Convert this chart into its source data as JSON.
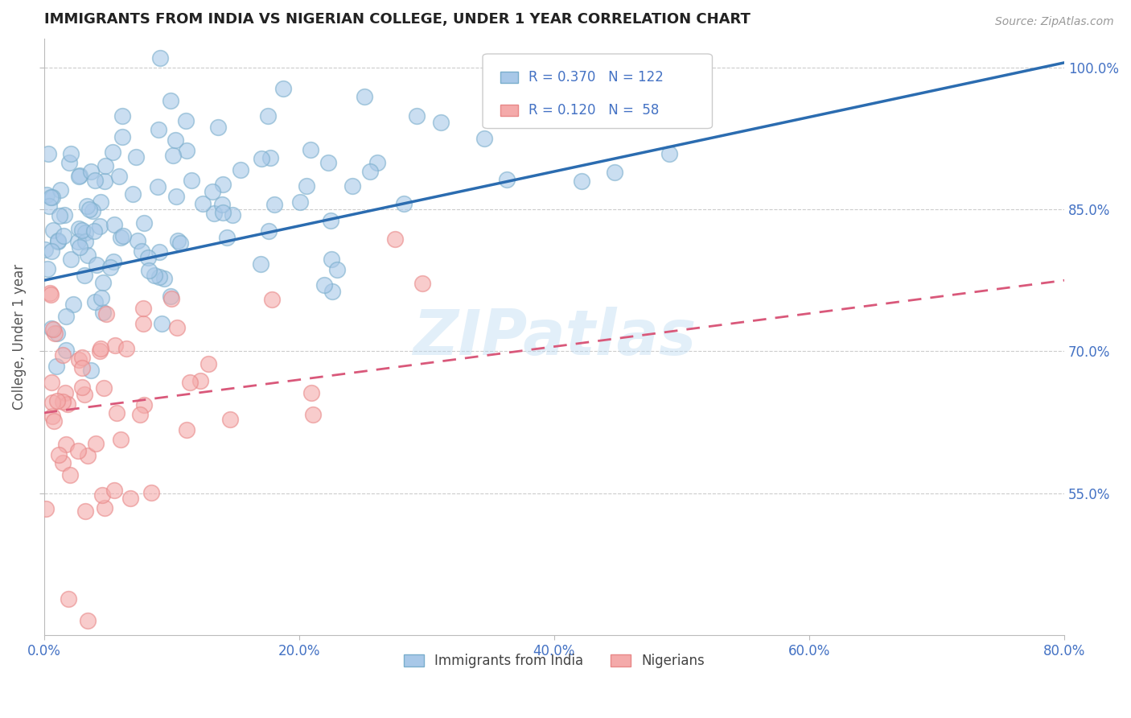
{
  "title": "IMMIGRANTS FROM INDIA VS NIGERIAN COLLEGE, UNDER 1 YEAR CORRELATION CHART",
  "source": "Source: ZipAtlas.com",
  "ylabel": "College, Under 1 year",
  "xlabel_ticks": [
    "0.0%",
    "20.0%",
    "40.0%",
    "60.0%",
    "80.0%"
  ],
  "ylabel_ticks": [
    "100.0%",
    "85.0%",
    "70.0%",
    "55.0%"
  ],
  "xlim": [
    0.0,
    0.8
  ],
  "ylim": [
    0.4,
    1.03
  ],
  "india_R": 0.37,
  "india_N": 122,
  "nigeria_R": 0.12,
  "nigeria_N": 58,
  "india_color": "#a8c8e8",
  "nigeria_color": "#f4aaaa",
  "india_edge_color": "#7aaecc",
  "nigeria_edge_color": "#e88888",
  "india_line_color": "#2b6cb0",
  "nigeria_line_color": "#d9587a",
  "legend_india_label": "Immigrants from India",
  "legend_nigeria_label": "Nigerians",
  "watermark": "ZIPatlas",
  "background_color": "#ffffff",
  "grid_color": "#cccccc",
  "title_color": "#222222",
  "tick_label_color": "#4472c4",
  "legend_text_color": "#4472c4",
  "india_line_y0": 0.775,
  "india_line_y1": 1.005,
  "nigeria_line_y0": 0.635,
  "nigeria_line_y1": 0.775
}
